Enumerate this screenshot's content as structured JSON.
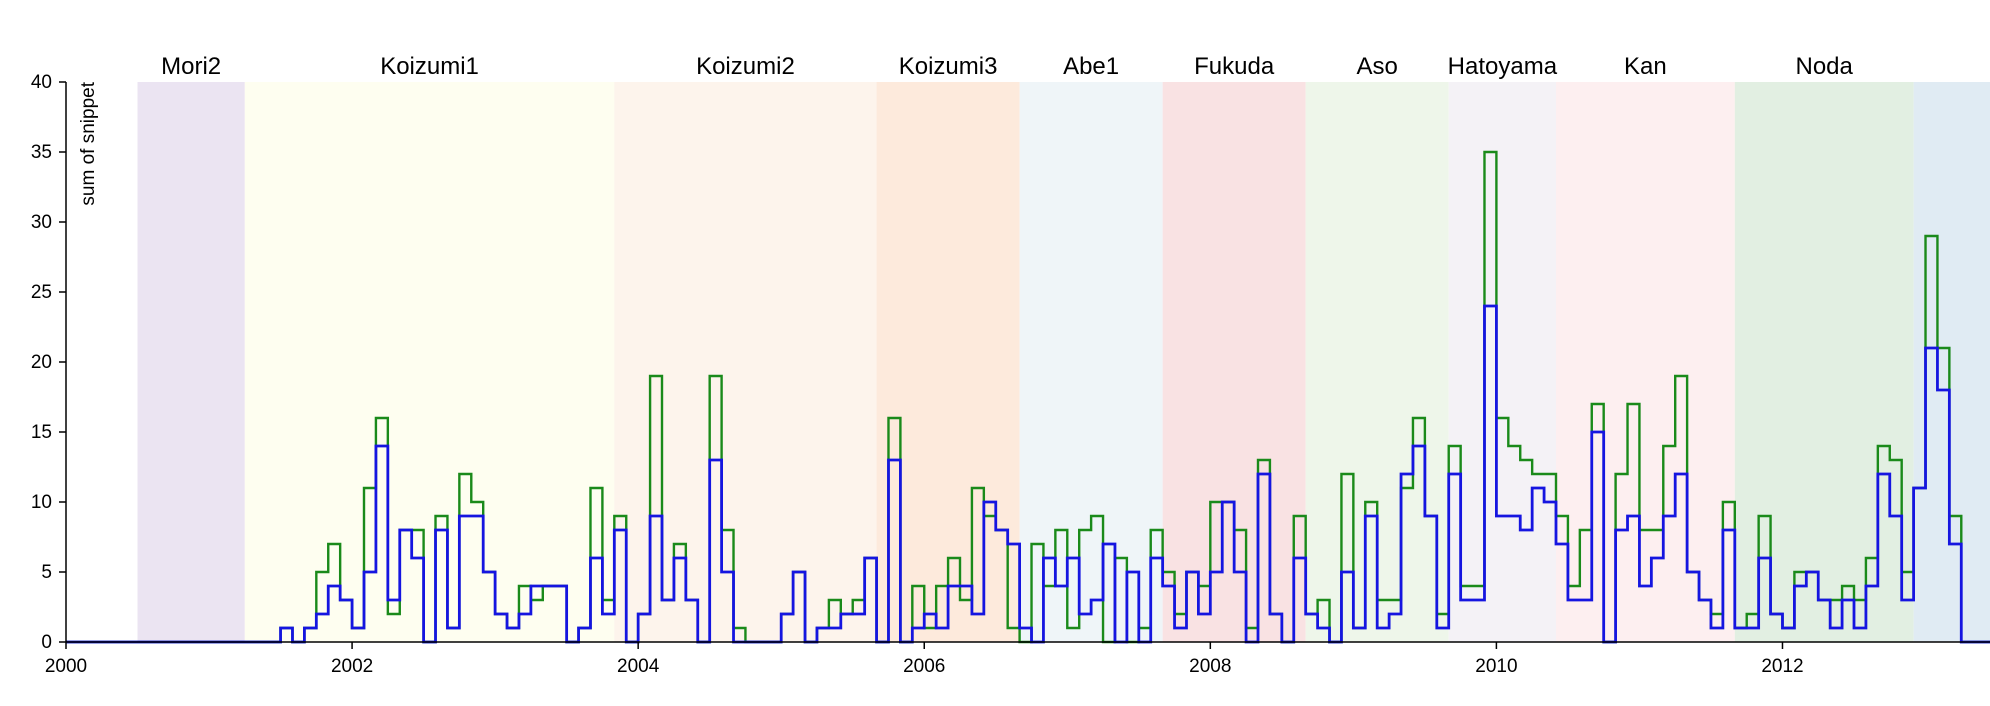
{
  "chart_data": {
    "type": "line",
    "style": "step",
    "ylabel": "sum of snippet",
    "xlim": [
      "2000-01",
      "2013-12"
    ],
    "ylim": [
      0,
      40
    ],
    "yticks": [
      0,
      5,
      10,
      15,
      20,
      25,
      30,
      35,
      40
    ],
    "xticks": [
      {
        "label": "2000",
        "value": "2000-01"
      },
      {
        "label": "2002",
        "value": "2002-01"
      },
      {
        "label": "2004",
        "value": "2004-01"
      },
      {
        "label": "2006",
        "value": "2006-01"
      },
      {
        "label": "2008",
        "value": "2008-01"
      },
      {
        "label": "2010",
        "value": "2010-01"
      },
      {
        "label": "2012",
        "value": "2012-01"
      }
    ],
    "grid": false,
    "eras": [
      {
        "name": "Mori2",
        "start": "2000-07",
        "end": "2001-04",
        "color": "#ebe4f2"
      },
      {
        "name": "Koizumi1",
        "start": "2001-04",
        "end": "2003-11",
        "color": "#fefef0"
      },
      {
        "name": "Koizumi2",
        "start": "2003-11",
        "end": "2005-09",
        "color": "#fdf4ec"
      },
      {
        "name": "Koizumi3",
        "start": "2005-09",
        "end": "2006-09",
        "color": "#fdeadc"
      },
      {
        "name": "Abe1",
        "start": "2006-09",
        "end": "2007-09",
        "color": "#eff5f8"
      },
      {
        "name": "Fukuda",
        "start": "2007-09",
        "end": "2008-09",
        "color": "#f9e2e3"
      },
      {
        "name": "Aso",
        "start": "2008-09",
        "end": "2009-09",
        "color": "#eef6ea"
      },
      {
        "name": "Hatoyama",
        "start": "2009-09",
        "end": "2010-06",
        "color": "#f4f2f6"
      },
      {
        "name": "Kan",
        "start": "2010-06",
        "end": "2011-09",
        "color": "#fdeff0"
      },
      {
        "name": "Noda",
        "start": "2011-09",
        "end": "2012-12",
        "color": "#e2efe2"
      },
      {
        "name": "",
        "start": "2012-12",
        "end": "2013-12",
        "color": "#e0ebf3"
      }
    ],
    "series": [
      {
        "color": "#1a8a1a",
        "x_start": "2000-01",
        "step": "month",
        "values": [
          0,
          0,
          0,
          0,
          0,
          0,
          0,
          0,
          0,
          0,
          0,
          0,
          0,
          0,
          0,
          0,
          0,
          0,
          1,
          0,
          1,
          5,
          7,
          3,
          1,
          11,
          16,
          2,
          8,
          8,
          0,
          9,
          1,
          12,
          10,
          5,
          2,
          1,
          4,
          3,
          4,
          4,
          0,
          1,
          11,
          3,
          9,
          0,
          2,
          19,
          3,
          7,
          3,
          0,
          19,
          8,
          1,
          0,
          0,
          0,
          2,
          5,
          0,
          1,
          3,
          2,
          3,
          6,
          0,
          16,
          0,
          4,
          1,
          4,
          6,
          3,
          11,
          9,
          8,
          1,
          0,
          7,
          4,
          8,
          1,
          8,
          9,
          0,
          6,
          0,
          1,
          8,
          5,
          2,
          5,
          4,
          10,
          10,
          8,
          1,
          13,
          2,
          0,
          9,
          2,
          3,
          0,
          12,
          1,
          10,
          3,
          3,
          11,
          16,
          9,
          2,
          14,
          4,
          4,
          35,
          16,
          14,
          13,
          12,
          12,
          9,
          4,
          8,
          17,
          0,
          12,
          17,
          8,
          8,
          14,
          19,
          5,
          3,
          2,
          10,
          1,
          2,
          9,
          2,
          1,
          5,
          5,
          3,
          3,
          4,
          3,
          6,
          14,
          13,
          5,
          11,
          29,
          21,
          9,
          0,
          0,
          0,
          0,
          0,
          0,
          0,
          0,
          0,
          0,
          0,
          0
        ]
      },
      {
        "color": "#1515e0",
        "x_start": "2000-01",
        "step": "month",
        "values": [
          0,
          0,
          0,
          0,
          0,
          0,
          0,
          0,
          0,
          0,
          0,
          0,
          0,
          0,
          0,
          0,
          0,
          0,
          1,
          0,
          1,
          2,
          4,
          3,
          1,
          5,
          14,
          3,
          8,
          6,
          0,
          8,
          1,
          9,
          9,
          5,
          2,
          1,
          2,
          4,
          4,
          4,
          0,
          1,
          6,
          2,
          8,
          0,
          2,
          9,
          3,
          6,
          3,
          0,
          13,
          5,
          0,
          0,
          0,
          0,
          2,
          5,
          0,
          1,
          1,
          2,
          2,
          6,
          0,
          13,
          0,
          1,
          2,
          1,
          4,
          4,
          2,
          10,
          8,
          7,
          1,
          0,
          6,
          4,
          6,
          2,
          3,
          7,
          0,
          5,
          0,
          6,
          4,
          1,
          5,
          2,
          5,
          10,
          5,
          0,
          12,
          2,
          0,
          6,
          2,
          1,
          0,
          5,
          1,
          9,
          1,
          2,
          12,
          14,
          9,
          1,
          12,
          3,
          3,
          24,
          9,
          9,
          8,
          11,
          10,
          7,
          3,
          3,
          15,
          0,
          8,
          9,
          4,
          6,
          9,
          12,
          5,
          3,
          1,
          8,
          1,
          1,
          6,
          2,
          1,
          4,
          5,
          3,
          1,
          3,
          1,
          4,
          12,
          9,
          3,
          11,
          21,
          18,
          7,
          0,
          0,
          0,
          0,
          0,
          0,
          0,
          0,
          0,
          0,
          0,
          0
        ]
      }
    ]
  }
}
